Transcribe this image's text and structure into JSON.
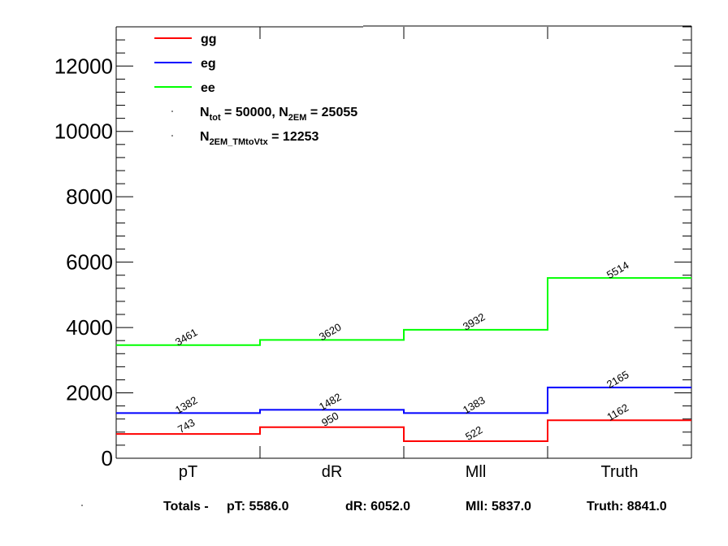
{
  "chart_data": {
    "type": "line",
    "title": "",
    "xlabel": "",
    "ylabel": "",
    "categories": [
      "pT",
      "dR",
      "Mll",
      "Truth"
    ],
    "ylim": [
      0,
      13200
    ],
    "yticks": [
      "0",
      "2000",
      "4000",
      "6000",
      "8000",
      "10000",
      "12000"
    ],
    "ytick_values": [
      0,
      2000,
      4000,
      6000,
      8000,
      10000,
      12000
    ],
    "series": [
      {
        "name": "gg",
        "color": "#ff0000",
        "values": [
          743,
          950,
          522,
          1162
        ],
        "labels": [
          "743",
          "950",
          "522",
          "1162"
        ]
      },
      {
        "name": "eg",
        "color": "#0000ff",
        "values": [
          1382,
          1482,
          1383,
          2165
        ],
        "labels": [
          "1382",
          "1482",
          "1383",
          "2165"
        ]
      },
      {
        "name": "ee",
        "color": "#00ff00",
        "values": [
          3461,
          3620,
          3932,
          5514
        ],
        "labels": [
          "3461",
          "3620",
          "3932",
          "5514"
        ]
      }
    ],
    "legend": {
      "placement": "top-left",
      "ntot_text": "N_tot = 50000, N_2EM = 25055",
      "ntot_prefix": "N",
      "ntot_sub": "tot",
      "ntot_mid": " = 50000, N",
      "n2em_sub": "2EM",
      "ntot_tail": " = 25055",
      "n2em_vtx_prefix": "N",
      "n2em_vtx_sub": "2EM_TMtoVtx",
      "n2em_vtx_tail": "  = 12253"
    },
    "totals": {
      "prefix": "Totals -",
      "pT": "pT: 5586.0",
      "dR": "dR: 6052.0",
      "Mll": "Mll: 5837.0",
      "Truth": "Truth: 8841.0"
    }
  }
}
